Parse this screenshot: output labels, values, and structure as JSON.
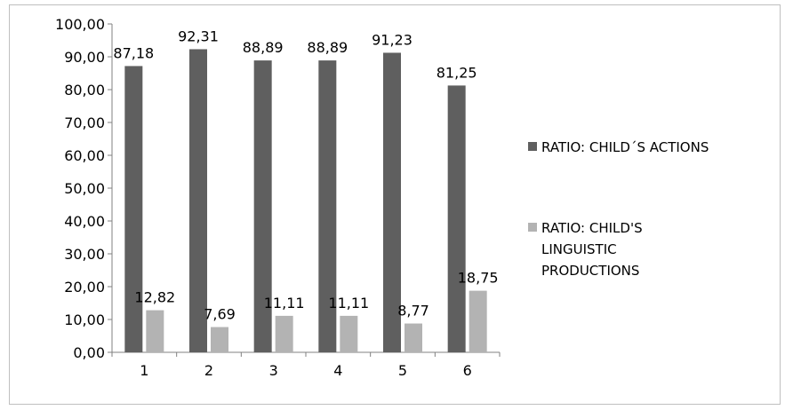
{
  "chart_data": {
    "type": "bar",
    "categories": [
      "1",
      "2",
      "3",
      "4",
      "5",
      "6"
    ],
    "series": [
      {
        "name": "RATIO: CHILD´S ACTIONS",
        "color": "#5f5f5f",
        "values": [
          87.18,
          92.31,
          88.89,
          88.89,
          91.23,
          81.25
        ],
        "labels": [
          "87,18",
          "92,31",
          "88,89",
          "88,89",
          "91,23",
          "81,25"
        ]
      },
      {
        "name": "RATIO: CHILD'S LINGUISTIC PRODUCTIONS",
        "color": "#b3b3b3",
        "values": [
          12.82,
          7.69,
          11.11,
          11.11,
          8.77,
          18.75
        ],
        "labels": [
          "12,82",
          "7,69",
          "11,11",
          "11,11",
          "8,77",
          "18,75"
        ]
      }
    ],
    "y_ticks": [
      "0,00",
      "10,00",
      "20,00",
      "30,00",
      "40,00",
      "50,00",
      "60,00",
      "70,00",
      "80,00",
      "90,00",
      "100,00"
    ],
    "ylim": [
      0,
      100
    ],
    "title": "",
    "xlabel": "",
    "ylabel": "",
    "grid": false,
    "legend": {
      "position": "right",
      "items": [
        {
          "series": 0,
          "lines": [
            "RATIO: CHILD´S ACTIONS"
          ]
        },
        {
          "series": 1,
          "lines": [
            "RATIO: CHILD'S",
            "LINGUISTIC",
            "PRODUCTIONS"
          ]
        }
      ]
    }
  }
}
